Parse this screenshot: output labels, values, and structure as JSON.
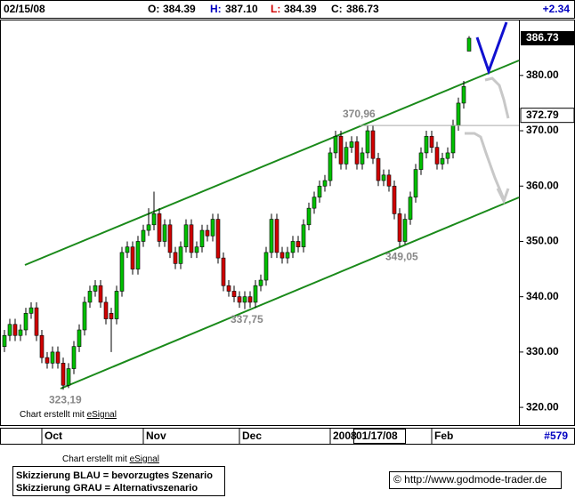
{
  "chart_data": {
    "type": "candlestick",
    "header": {
      "date": "02/15/08",
      "open_label": "O:",
      "open": "384.39",
      "high_label": "H:",
      "high": "387.10",
      "low_label": "L:",
      "low": "384.39",
      "close_label": "C:",
      "close": "386.73",
      "change": "+2.34"
    },
    "categories": [
      null,
      null,
      null,
      null,
      null,
      null,
      null,
      "Oct",
      null,
      null,
      null,
      null,
      null,
      null,
      null,
      null,
      null,
      null,
      null,
      null,
      null,
      null,
      null,
      null,
      null,
      null,
      "Nov",
      null,
      null,
      null,
      null,
      null,
      null,
      null,
      null,
      null,
      null,
      null,
      null,
      null,
      null,
      null,
      null,
      null,
      "Dec",
      null,
      null,
      null,
      null,
      null,
      null,
      null,
      null,
      null,
      null,
      null,
      null,
      null,
      null,
      null,
      null,
      "2008",
      null,
      null,
      null,
      null,
      null,
      null,
      null,
      null,
      null,
      null,
      null,
      null,
      null,
      null,
      null,
      null,
      null,
      null,
      "Feb",
      null,
      null,
      null,
      null,
      null,
      null,
      null
    ],
    "open": [
      331,
      333,
      335,
      333,
      334,
      337,
      338,
      333,
      329,
      328,
      330,
      328,
      324,
      327,
      331,
      334,
      339,
      341,
      342,
      339,
      337,
      336,
      341,
      348,
      349,
      345,
      350,
      352,
      353,
      355,
      350,
      353,
      348,
      346,
      349,
      353,
      348,
      349,
      352,
      351,
      354,
      347,
      342,
      341,
      340,
      339,
      340,
      339,
      342,
      343,
      348,
      354,
      348,
      347,
      348,
      350,
      349,
      353,
      356,
      358,
      360,
      361,
      366,
      369,
      364,
      367,
      368,
      364,
      366,
      370,
      365,
      361,
      362,
      360,
      355,
      350,
      354,
      358,
      363,
      366,
      369,
      367,
      364,
      365,
      366,
      371,
      375,
      384.39
    ],
    "high": [
      334,
      336,
      336,
      335,
      338,
      339,
      339,
      334,
      330,
      331,
      331,
      329,
      328,
      332,
      335,
      340,
      342,
      343,
      343,
      340,
      338,
      342,
      349,
      350,
      350,
      351,
      353,
      356,
      359,
      356,
      354,
      354,
      349,
      350,
      354,
      354,
      350,
      353,
      353,
      355,
      355,
      348,
      343,
      342,
      341,
      341,
      341,
      343,
      344,
      349,
      355,
      355,
      349,
      349,
      351,
      351,
      354,
      357,
      359,
      361,
      362,
      367,
      370,
      370,
      368,
      369,
      369,
      367,
      370.96,
      371,
      366,
      363,
      363,
      361,
      356,
      355,
      359,
      364,
      367,
      370,
      370,
      368,
      366,
      367,
      372,
      376,
      379,
      387.1
    ],
    "low": [
      330,
      332,
      332,
      332,
      333,
      336,
      332,
      328,
      327,
      327,
      327,
      323.19,
      323.5,
      326,
      330,
      333,
      338,
      340,
      338,
      335,
      330,
      335,
      340,
      347,
      344,
      344,
      349,
      351,
      352,
      349,
      349,
      347,
      345,
      345,
      348,
      347,
      347,
      348,
      350,
      350,
      346,
      341,
      340,
      339,
      338,
      337.75,
      338,
      338,
      341,
      342,
      347,
      347,
      346,
      346,
      347,
      348,
      348,
      352,
      355,
      357,
      359,
      360,
      365,
      363,
      363,
      366,
      363,
      363,
      365,
      364,
      360,
      360,
      359,
      354,
      349.05,
      349.5,
      353,
      357,
      362,
      365,
      366,
      363,
      363,
      364,
      365,
      370,
      374,
      384.39
    ],
    "close": [
      333,
      335,
      333,
      334,
      337,
      338,
      333,
      329,
      328,
      330,
      328,
      324,
      327,
      331,
      334,
      339,
      341,
      342,
      339,
      336,
      336,
      341,
      348,
      349,
      345,
      350,
      352,
      353,
      355,
      350,
      353,
      348,
      346,
      349,
      353,
      348,
      349,
      352,
      351,
      354,
      347,
      342,
      341,
      340,
      339,
      340,
      339,
      342,
      343,
      348,
      354,
      348,
      347,
      348,
      350,
      349,
      353,
      356,
      358,
      360,
      361,
      366,
      369,
      364,
      367,
      368,
      364,
      366,
      370,
      365,
      361,
      362,
      360,
      355,
      350,
      354,
      358,
      363,
      366,
      369,
      367,
      364,
      365,
      366,
      371,
      375,
      378,
      386.73
    ],
    "up_color": "#00c000",
    "down_color": "#d00000",
    "ylim": [
      316.8,
      390.1
    ],
    "yticks": [
      {
        "value": 320,
        "label": "320.00"
      },
      {
        "value": 330,
        "label": "330.00"
      },
      {
        "value": 340,
        "label": "340.00"
      },
      {
        "value": 350,
        "label": "350.00"
      },
      {
        "value": 360,
        "label": "360.00"
      },
      {
        "value": 370,
        "label": "370.00"
      },
      {
        "value": 380,
        "label": "380.00"
      }
    ],
    "annotations": [
      {
        "label": "323,19",
        "value": 323.19,
        "index": 11
      },
      {
        "label": "337,75",
        "value": 337.75,
        "index": 45
      },
      {
        "label": "349,05",
        "value": 349.05,
        "index": 74
      },
      {
        "label": "370,96",
        "value": 370.96,
        "index": 68
      }
    ],
    "last_price": 386.73,
    "marker_price": 372.79,
    "cursor_date": "01/17/08",
    "bar_count": "#579",
    "credit_text": "Chart erstellt mit ",
    "credit_link": "eSignal",
    "legend": [
      "Skizzierung BLAU = bevorzugtes Szenario",
      "Skizzierung GRAU = Alternativszenario"
    ],
    "copyright": "© http://www.godmode-trader.de"
  }
}
